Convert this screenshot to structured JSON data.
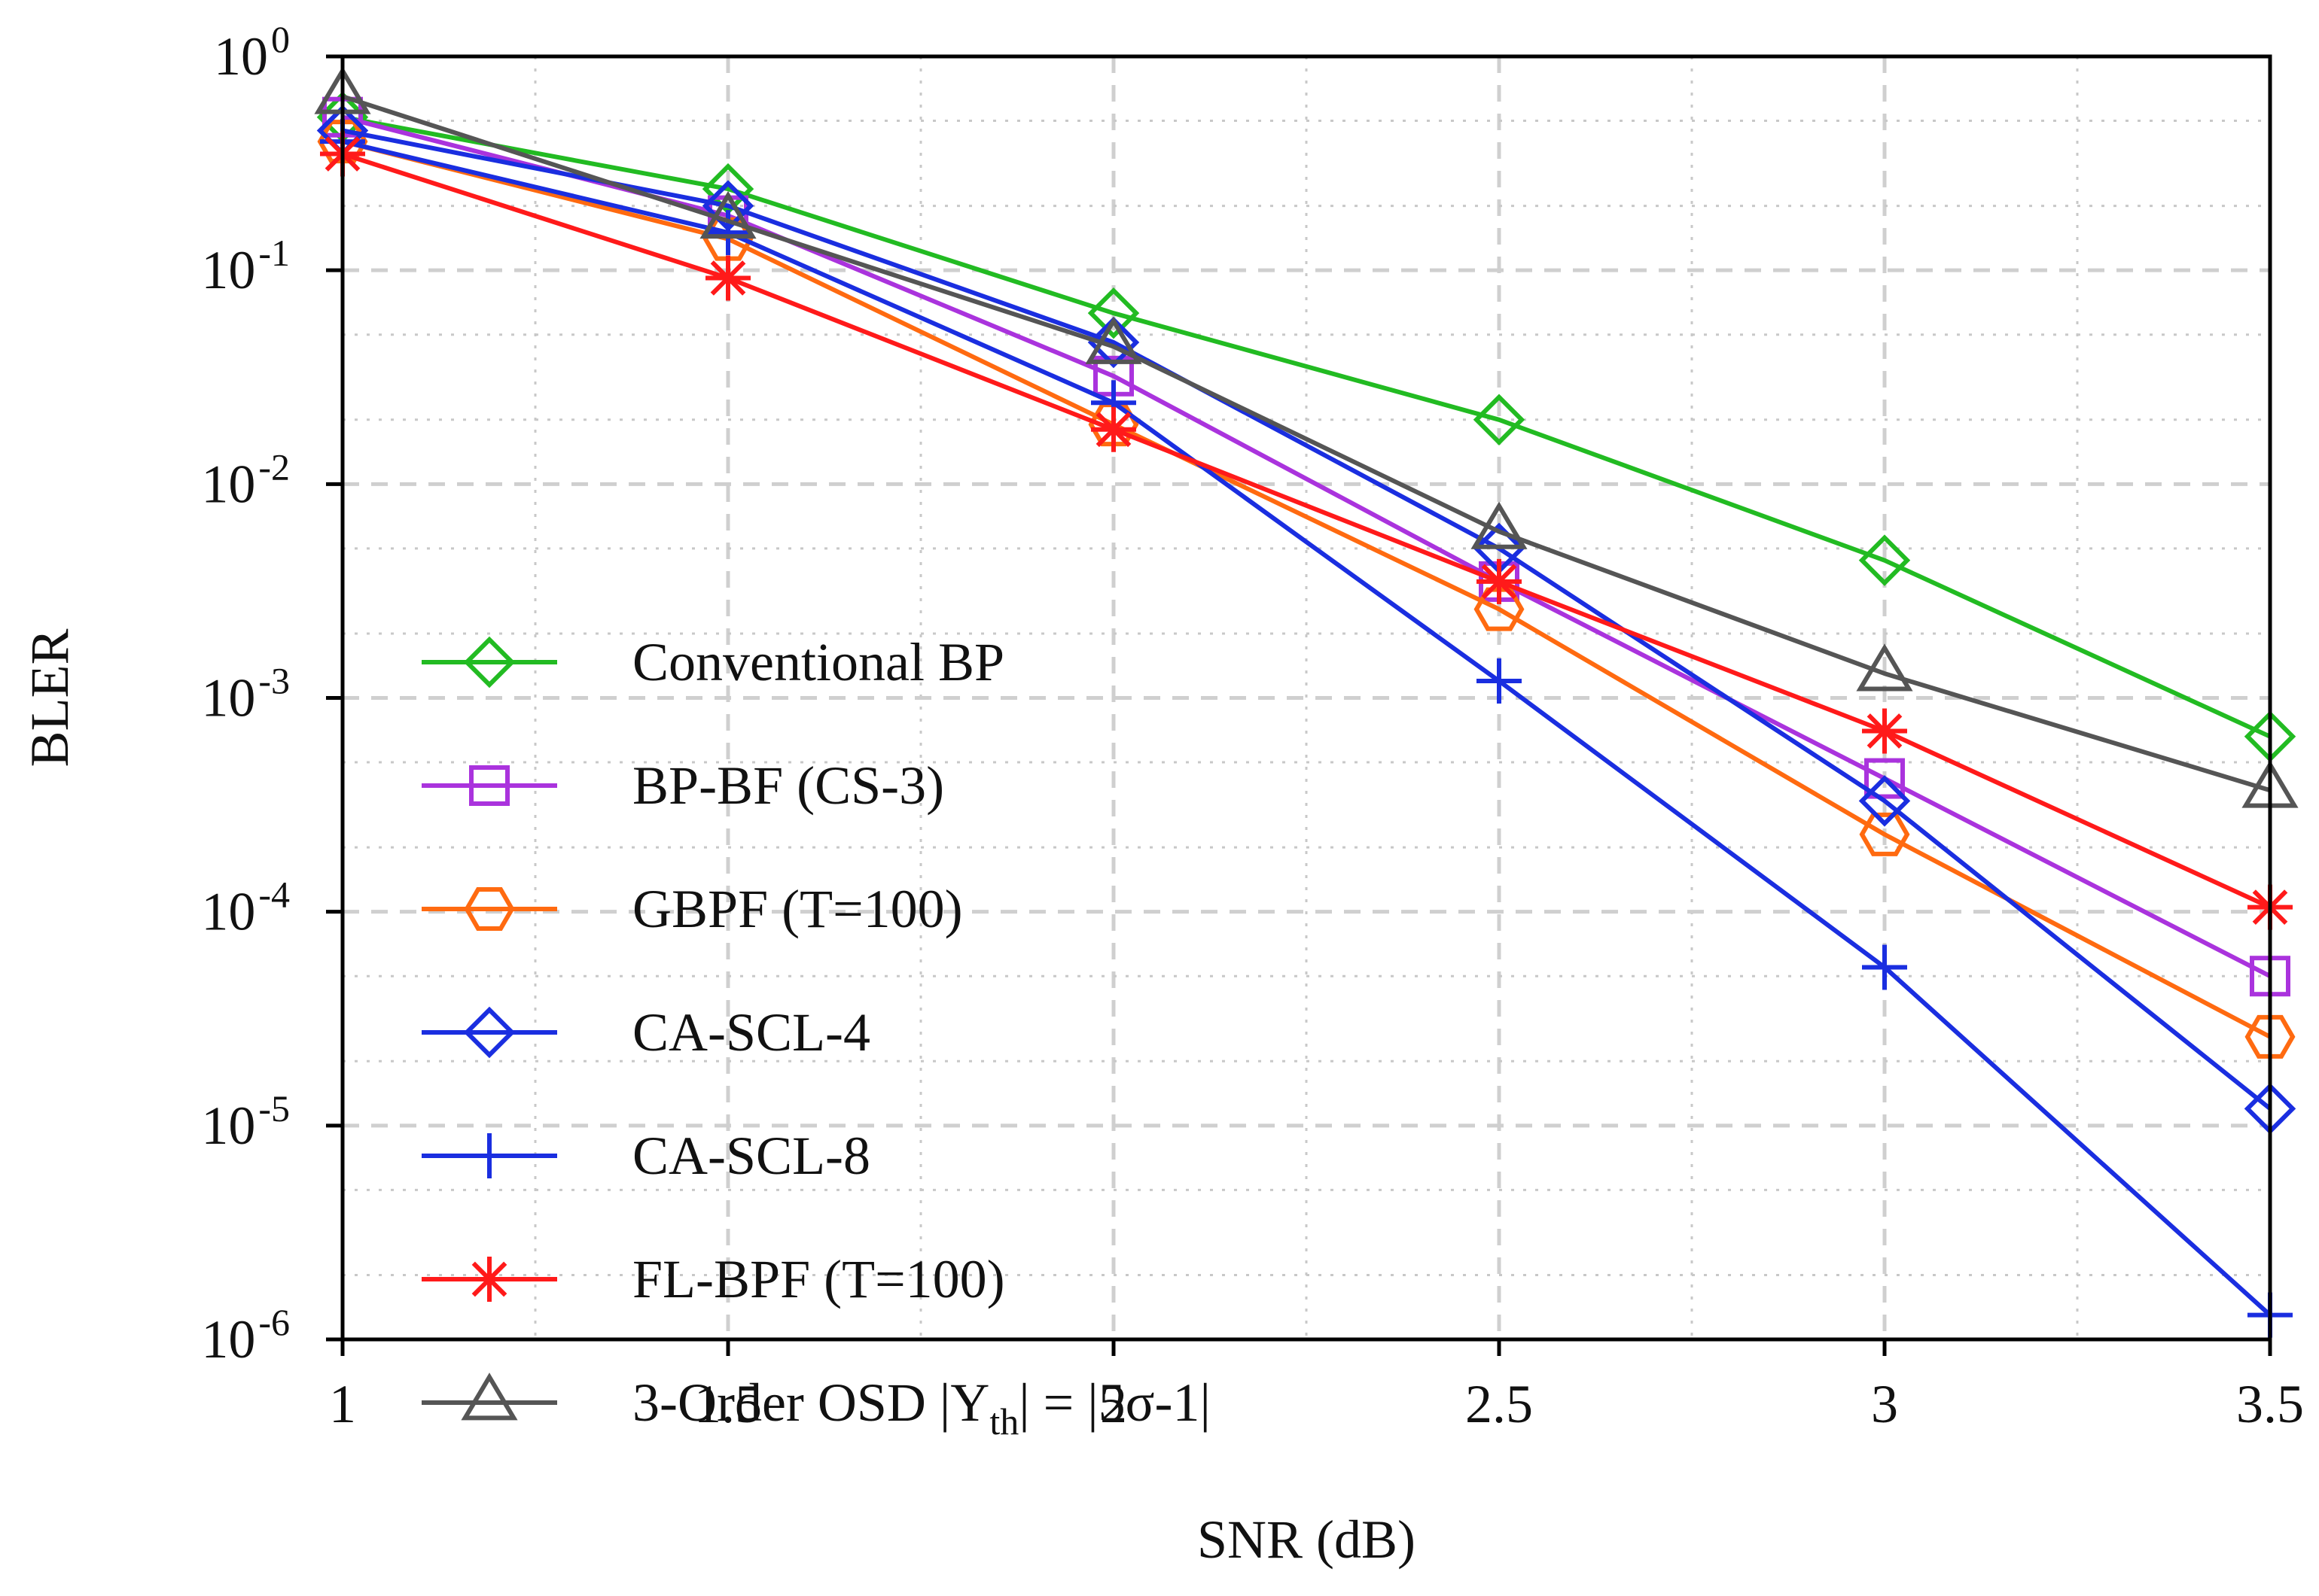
{
  "chart_data": {
    "type": "line",
    "xlabel": "SNR (dB)",
    "ylabel": "BLER",
    "xlim": [
      1,
      3.5
    ],
    "ylim": [
      1e-06,
      1
    ],
    "yscale": "log",
    "grid": true,
    "legend_position": "bottom-left",
    "x_ticks": [
      "1",
      "1.5",
      "2",
      "2.5",
      "3",
      "3.5"
    ],
    "y_ticks": [
      {
        "base": "10",
        "exp": "0"
      },
      {
        "base": "10",
        "exp": "-1"
      },
      {
        "base": "10",
        "exp": "-2"
      },
      {
        "base": "10",
        "exp": "-3"
      },
      {
        "base": "10",
        "exp": "-4"
      },
      {
        "base": "10",
        "exp": "-5"
      },
      {
        "base": "10",
        "exp": "-6"
      }
    ],
    "x": [
      1,
      1.5,
      2,
      2.5,
      3,
      3.5
    ],
    "series": [
      {
        "name": "Conventional BP",
        "color": "#22bb22",
        "marker": "diamond",
        "values": [
          0.52,
          0.24,
          0.063,
          0.02,
          0.0044,
          0.00066
        ]
      },
      {
        "name": "BP-BF (CS-3)",
        "color": "#aa33dd",
        "marker": "square",
        "values": [
          0.52,
          0.18,
          0.032,
          0.0035,
          0.00042,
          5e-05
        ]
      },
      {
        "name": "GBPF (T=100)",
        "color": "#ff6a10",
        "marker": "hexagon",
        "values": [
          0.4,
          0.14,
          0.019,
          0.0026,
          0.00023,
          2.6e-05
        ]
      },
      {
        "name": "CA-SCL-4",
        "color": "#1a2ee0",
        "marker": "diamond",
        "values": [
          0.45,
          0.2,
          0.046,
          0.005,
          0.00033,
          1.2e-05
        ]
      },
      {
        "name": "CA-SCL-8",
        "color": "#1a2ee0",
        "marker": "plus",
        "values": [
          0.4,
          0.15,
          0.024,
          0.0012,
          5.5e-05,
          1.3e-06
        ]
      },
      {
        "name": "FL-BPF (T=100)",
        "color": "#ff1a1a",
        "marker": "asterisk",
        "values": [
          0.35,
          0.092,
          0.018,
          0.0035,
          0.0007,
          0.000105
        ]
      },
      {
        "name": "3-Order OSD |Y_th| = |5σ-1|",
        "color": "#555555",
        "marker": "triangle",
        "values": [
          0.65,
          0.17,
          0.044,
          0.006,
          0.0013,
          0.00037
        ]
      }
    ],
    "legend_labels": [
      {
        "main": "Conventional BP"
      },
      {
        "main": "BP-BF (CS-3)"
      },
      {
        "main": "GBPF (T=100)"
      },
      {
        "main": "CA-SCL-4"
      },
      {
        "main": "CA-SCL-8"
      },
      {
        "main": "FL-BPF (T=100)"
      },
      {
        "main": "3-Order OSD |Y",
        "sub": "th",
        "tail": "| = |5σ-1|"
      }
    ]
  }
}
